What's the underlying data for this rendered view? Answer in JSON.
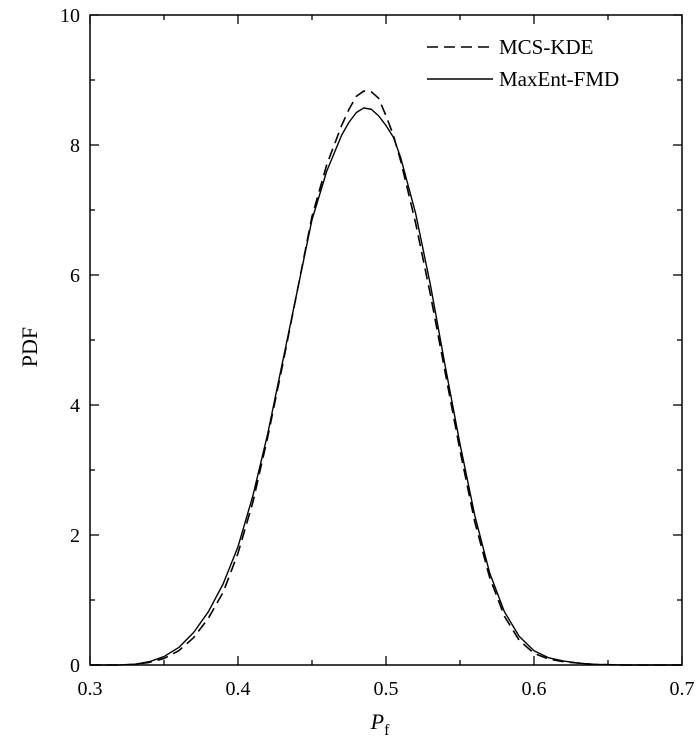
{
  "chart_data": {
    "type": "line",
    "xlabel": "P",
    "xlabel_sub": "f",
    "ylabel": "PDF",
    "xlim": [
      0.3,
      0.7
    ],
    "ylim": [
      0,
      10
    ],
    "xticks": [
      0.3,
      0.4,
      0.5,
      0.6,
      0.7
    ],
    "xtick_labels": [
      "0.3",
      "0.4",
      "0.5",
      "0.6",
      "0.7"
    ],
    "yticks": [
      0,
      2,
      4,
      6,
      8,
      10
    ],
    "ytick_labels": [
      "0",
      "2",
      "4",
      "6",
      "8",
      "10"
    ],
    "grid": false,
    "legend": "top-right",
    "series": [
      {
        "name": "MCS-KDE",
        "style": "dashed",
        "color": "#000000",
        "x": [
          0.3,
          0.32,
          0.33,
          0.34,
          0.35,
          0.36,
          0.37,
          0.38,
          0.39,
          0.4,
          0.41,
          0.42,
          0.43,
          0.44,
          0.45,
          0.46,
          0.47,
          0.475,
          0.48,
          0.485,
          0.49,
          0.495,
          0.5,
          0.505,
          0.51,
          0.52,
          0.53,
          0.54,
          0.55,
          0.56,
          0.57,
          0.58,
          0.59,
          0.6,
          0.61,
          0.62,
          0.63,
          0.64,
          0.65,
          0.66,
          0.7
        ],
        "y": [
          0,
          0,
          0.01,
          0.04,
          0.1,
          0.22,
          0.42,
          0.72,
          1.12,
          1.72,
          2.5,
          3.5,
          4.6,
          5.75,
          6.9,
          7.7,
          8.3,
          8.55,
          8.75,
          8.83,
          8.82,
          8.72,
          8.45,
          8.15,
          7.75,
          6.8,
          5.7,
          4.5,
          3.3,
          2.2,
          1.35,
          0.75,
          0.38,
          0.18,
          0.09,
          0.05,
          0.03,
          0.01,
          0.005,
          0,
          0
        ]
      },
      {
        "name": "MaxEnt-FMD",
        "style": "solid",
        "color": "#000000",
        "x": [
          0.3,
          0.32,
          0.33,
          0.34,
          0.35,
          0.36,
          0.37,
          0.38,
          0.39,
          0.4,
          0.41,
          0.42,
          0.43,
          0.44,
          0.45,
          0.46,
          0.47,
          0.475,
          0.48,
          0.485,
          0.49,
          0.495,
          0.5,
          0.505,
          0.51,
          0.52,
          0.53,
          0.54,
          0.55,
          0.56,
          0.57,
          0.58,
          0.59,
          0.6,
          0.61,
          0.62,
          0.63,
          0.64,
          0.65,
          0.66,
          0.7
        ],
        "y": [
          0,
          0,
          0.01,
          0.05,
          0.13,
          0.27,
          0.5,
          0.82,
          1.25,
          1.82,
          2.6,
          3.55,
          4.65,
          5.75,
          6.85,
          7.6,
          8.15,
          8.35,
          8.5,
          8.57,
          8.55,
          8.45,
          8.3,
          8.12,
          7.8,
          6.95,
          5.85,
          4.6,
          3.4,
          2.3,
          1.42,
          0.82,
          0.44,
          0.22,
          0.11,
          0.06,
          0.03,
          0.01,
          0.005,
          0,
          0
        ]
      }
    ]
  }
}
